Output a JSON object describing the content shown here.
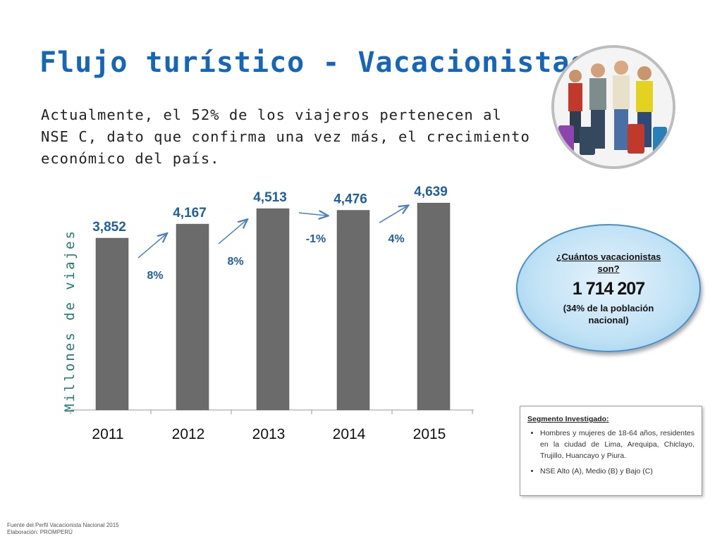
{
  "header": {
    "title": "Flujo turístico - Vacacionistas",
    "subtitle": "Actualmente, el 52% de los viajeros pertenecen al NSE C, dato que confirma una vez más, el crecimiento económico del país."
  },
  "chart_data": {
    "type": "bar",
    "categories": [
      "2011",
      "2012",
      "2013",
      "2014",
      "2015"
    ],
    "values": [
      3852,
      4167,
      4513,
      4476,
      4639
    ],
    "value_labels": [
      "3,852",
      "4,167",
      "4,513",
      "4,476",
      "4,639"
    ],
    "growth_labels": [
      "8%",
      "8%",
      "-1%",
      "4%"
    ],
    "ylabel": "Millones de viajes",
    "ylim": [
      0,
      4800
    ],
    "grid": false,
    "bar_color": "#6b6b6b",
    "label_color": "#1f5fa0",
    "arrow_color": "#4a7fc0"
  },
  "callout": {
    "question": "¿Cuántos vacacionistas son?",
    "number": "1 714 207",
    "note": "(34% de la población nacional)"
  },
  "segment": {
    "title": "Segmento Investigado:",
    "bullets": [
      "Hombres y mujeres de 18-64 años, residentes en la ciudad de Lima, Arequipa, Chiclayo, Trujillo, Huancayo y Piura.",
      "NSE Alto (A), Medio (B) y Bajo (C)"
    ]
  },
  "footer": {
    "source": "Fuente del Perfil Vacacionista Nacional 2015",
    "credit": "Elaboración: PROMPERÚ"
  },
  "photo": {
    "icon": "travelers-with-suitcases-photo"
  }
}
